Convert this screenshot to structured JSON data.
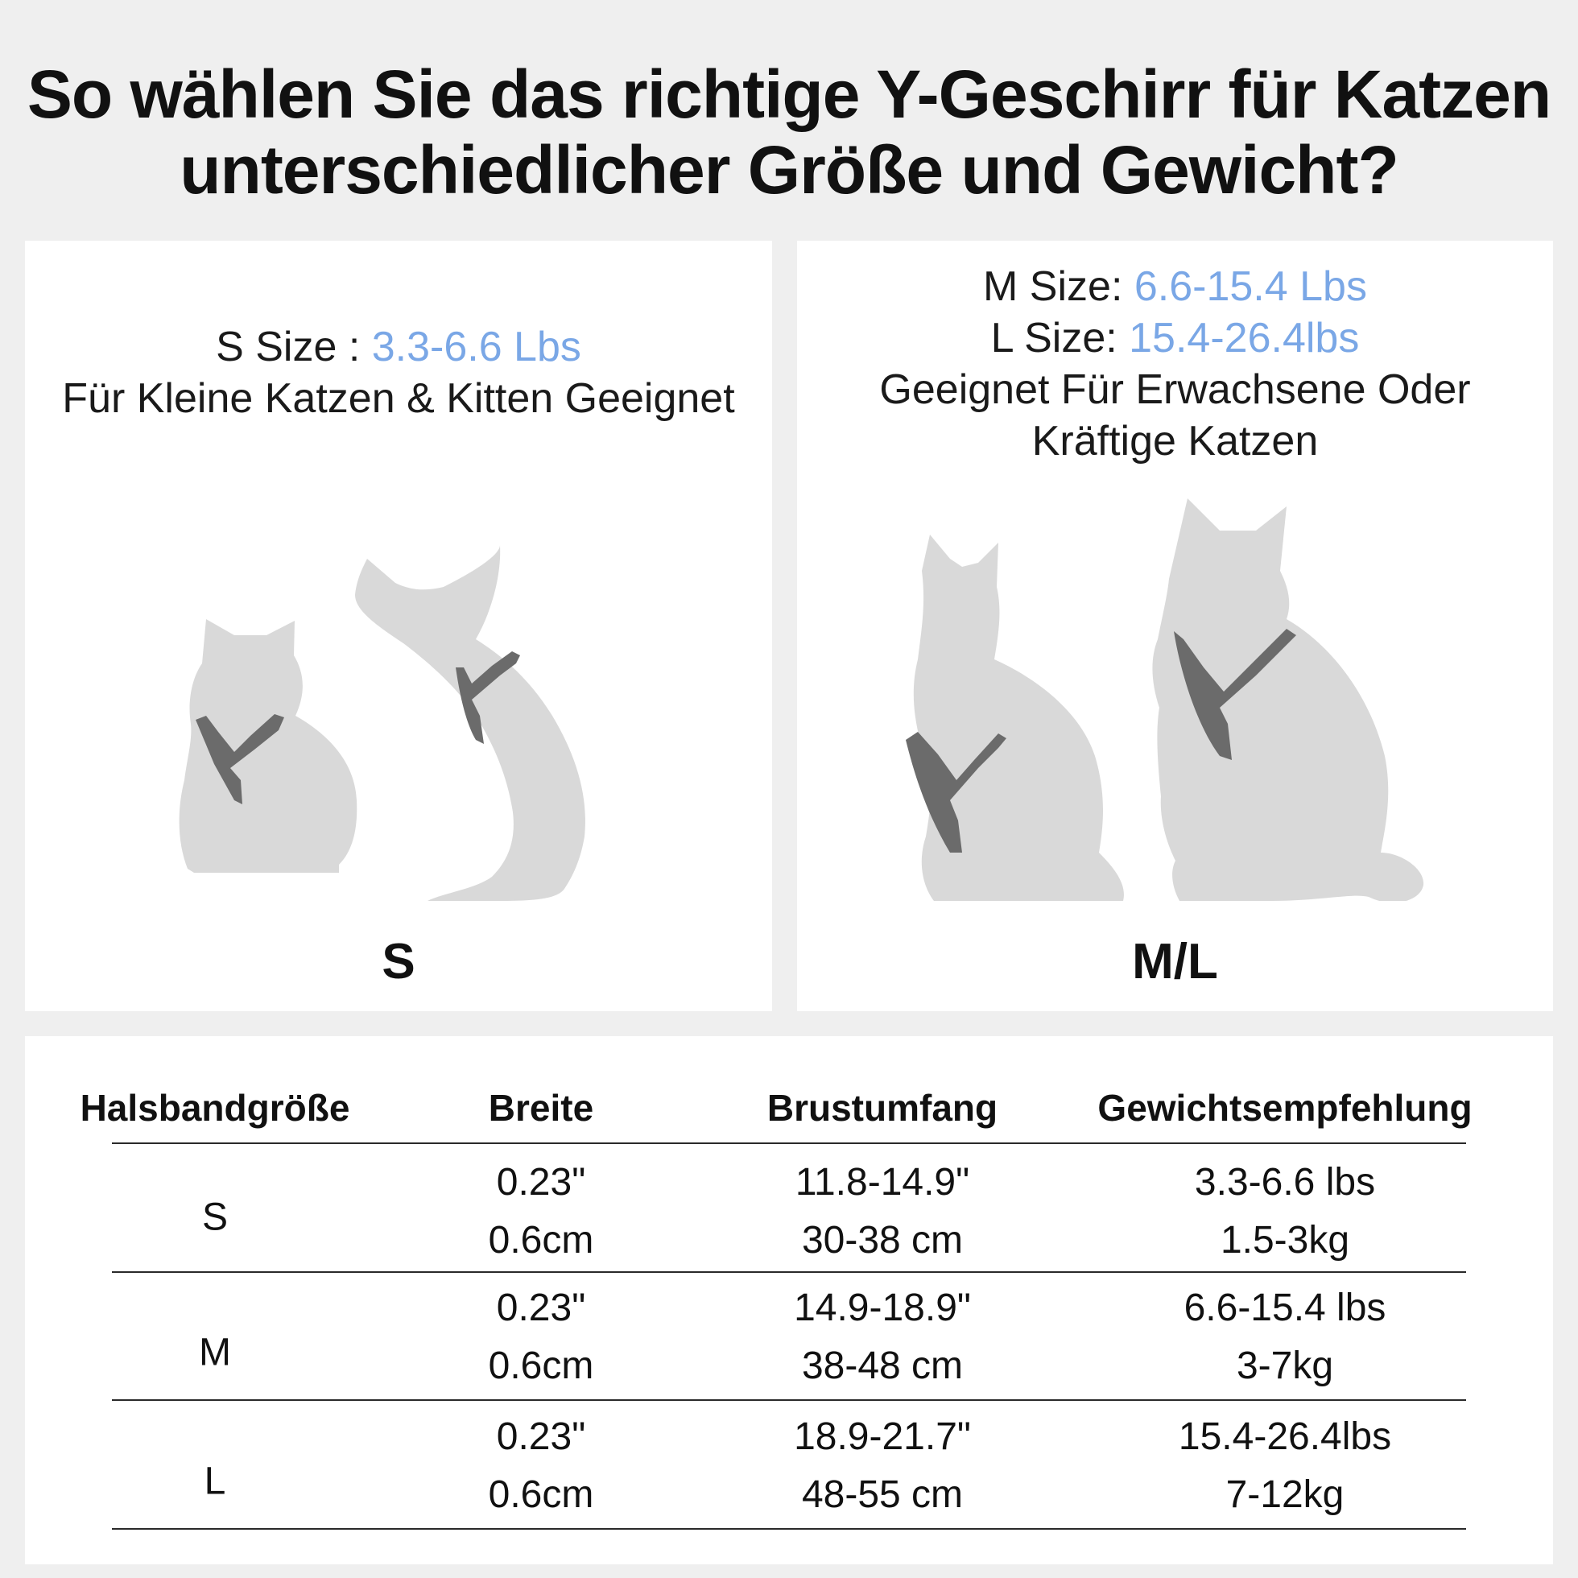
{
  "title": {
    "line1": "So wählen Sie das richtige Y-Geschirr für Katzen",
    "line2": "unterschiedlicher Größe und Gewicht?"
  },
  "panel_s": {
    "size_label": "S Size : ",
    "size_value": "3.3-6.6 Lbs",
    "description": "Für Kleine Katzen & Kitten Geeignet",
    "caption": "S"
  },
  "panel_ml": {
    "m_label": "M Size: ",
    "m_value": "6.6-15.4 Lbs",
    "l_label": "L Size: ",
    "l_value": "15.4-26.4lbs",
    "description_line1": "Geeignet Für Erwachsene Oder",
    "description_line2": "Kräftige Katzen",
    "caption": "M/L"
  },
  "table": {
    "headers": [
      "Halsbandgröße",
      "Breite",
      "Brustumfang",
      "Gewichtsempfehlung"
    ],
    "rows": [
      {
        "size": "S",
        "width_in": "0.23\"",
        "width_cm": "0.6cm",
        "chest_in": "11.8-14.9\"",
        "chest_cm": "30-38 cm",
        "weight_lbs": "3.3-6.6 lbs",
        "weight_kg": "1.5-3kg"
      },
      {
        "size": "M",
        "width_in": "0.23\"",
        "width_cm": "0.6cm",
        "chest_in": "14.9-18.9\"",
        "chest_cm": "38-48 cm",
        "weight_lbs": "6.6-15.4 lbs",
        "weight_kg": "3-7kg"
      },
      {
        "size": "L",
        "width_in": "0.23\"",
        "width_cm": "0.6cm",
        "chest_in": "18.9-21.7\"",
        "chest_cm": "48-55 cm",
        "weight_lbs": "15.4-26.4lbs",
        "weight_kg": "7-12kg"
      }
    ]
  },
  "colors": {
    "highlight": "#7aa7e6",
    "cat_silhouette": "#d9d9d9",
    "harness": "#6b6b6b"
  }
}
